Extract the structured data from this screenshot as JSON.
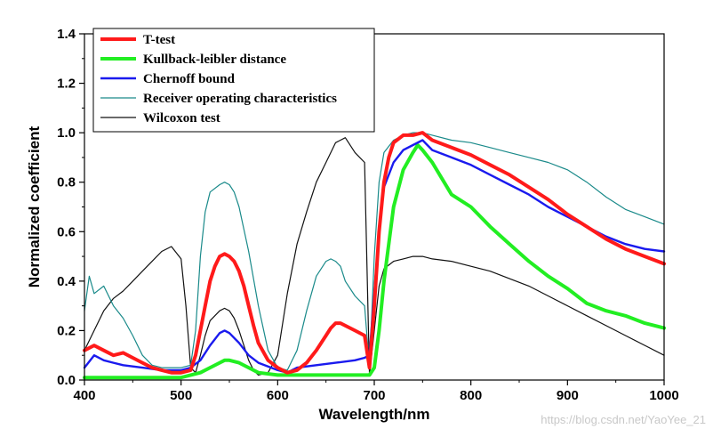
{
  "chart_data": {
    "type": "line",
    "title": "",
    "xlabel": "Wavelength/nm",
    "ylabel": "Normalized coefficient",
    "xlim": [
      400,
      1000
    ],
    "ylim": [
      0,
      1.4
    ],
    "xticks": [
      400,
      500,
      600,
      700,
      800,
      900,
      1000
    ],
    "yticks": [
      0.0,
      0.2,
      0.4,
      0.6,
      0.8,
      1.0,
      1.2,
      1.4
    ],
    "yticklabels": [
      "0.0",
      "0.2",
      "0.4",
      "0.6",
      "0.8",
      "1.0",
      "1.2",
      "1.4"
    ],
    "legend_position": "top-left",
    "series": [
      {
        "name": "T-test",
        "color": "#ff1a1a",
        "weight": "heavy",
        "x": [
          400,
          410,
          420,
          430,
          440,
          450,
          460,
          470,
          480,
          490,
          500,
          510,
          515,
          520,
          525,
          530,
          535,
          540,
          545,
          550,
          555,
          560,
          565,
          570,
          575,
          580,
          590,
          600,
          610,
          620,
          630,
          640,
          650,
          655,
          660,
          665,
          670,
          680,
          690,
          695,
          700,
          705,
          710,
          715,
          720,
          730,
          740,
          750,
          760,
          780,
          800,
          820,
          840,
          860,
          880,
          900,
          920,
          940,
          960,
          980,
          1000
        ],
        "y": [
          0.12,
          0.14,
          0.12,
          0.1,
          0.11,
          0.09,
          0.07,
          0.05,
          0.04,
          0.03,
          0.03,
          0.04,
          0.1,
          0.2,
          0.3,
          0.4,
          0.46,
          0.5,
          0.51,
          0.5,
          0.48,
          0.44,
          0.38,
          0.3,
          0.22,
          0.15,
          0.08,
          0.05,
          0.03,
          0.04,
          0.07,
          0.12,
          0.18,
          0.21,
          0.23,
          0.23,
          0.22,
          0.2,
          0.18,
          0.05,
          0.3,
          0.6,
          0.8,
          0.9,
          0.96,
          0.99,
          0.99,
          1.0,
          0.97,
          0.94,
          0.91,
          0.87,
          0.83,
          0.78,
          0.73,
          0.67,
          0.62,
          0.57,
          0.53,
          0.5,
          0.47
        ]
      },
      {
        "name": "Kullback-leibler distance",
        "color": "#22ee22",
        "weight": "heavy",
        "x": [
          400,
          440,
          480,
          500,
          510,
          520,
          530,
          540,
          545,
          550,
          560,
          570,
          580,
          600,
          620,
          640,
          660,
          680,
          690,
          695,
          700,
          705,
          710,
          720,
          730,
          740,
          745,
          750,
          760,
          780,
          800,
          820,
          840,
          860,
          880,
          900,
          920,
          940,
          960,
          980,
          1000
        ],
        "y": [
          0.01,
          0.01,
          0.01,
          0.01,
          0.02,
          0.03,
          0.05,
          0.07,
          0.08,
          0.08,
          0.07,
          0.05,
          0.03,
          0.02,
          0.02,
          0.02,
          0.02,
          0.02,
          0.02,
          0.02,
          0.05,
          0.2,
          0.4,
          0.7,
          0.85,
          0.92,
          0.95,
          0.93,
          0.88,
          0.75,
          0.7,
          0.62,
          0.55,
          0.48,
          0.42,
          0.37,
          0.31,
          0.28,
          0.26,
          0.23,
          0.21
        ]
      },
      {
        "name": "Chernoff bound",
        "color": "#1a1aee",
        "weight": "medium",
        "x": [
          400,
          410,
          420,
          430,
          440,
          460,
          480,
          500,
          510,
          520,
          530,
          540,
          545,
          550,
          560,
          570,
          580,
          600,
          610,
          620,
          640,
          660,
          680,
          690,
          695,
          700,
          705,
          710,
          720,
          730,
          740,
          750,
          760,
          780,
          800,
          820,
          840,
          860,
          880,
          900,
          920,
          940,
          960,
          980,
          1000
        ],
        "y": [
          0.05,
          0.1,
          0.08,
          0.07,
          0.06,
          0.05,
          0.04,
          0.04,
          0.05,
          0.08,
          0.14,
          0.19,
          0.2,
          0.19,
          0.15,
          0.1,
          0.07,
          0.04,
          0.03,
          0.05,
          0.06,
          0.07,
          0.08,
          0.09,
          0.1,
          0.35,
          0.6,
          0.78,
          0.88,
          0.93,
          0.95,
          0.97,
          0.93,
          0.9,
          0.87,
          0.83,
          0.79,
          0.75,
          0.7,
          0.66,
          0.62,
          0.58,
          0.55,
          0.53,
          0.52
        ]
      },
      {
        "name": "Receiver operating characteristics",
        "color": "#1a8a8a",
        "weight": "thin",
        "x": [
          400,
          405,
          410,
          420,
          430,
          440,
          450,
          460,
          470,
          480,
          490,
          500,
          510,
          515,
          520,
          525,
          530,
          540,
          545,
          550,
          555,
          560,
          570,
          580,
          590,
          600,
          610,
          620,
          630,
          640,
          650,
          655,
          660,
          665,
          670,
          680,
          690,
          695,
          700,
          705,
          710,
          720,
          730,
          740,
          750,
          760,
          780,
          800,
          820,
          840,
          860,
          880,
          900,
          920,
          940,
          960,
          980,
          1000
        ],
        "y": [
          0.28,
          0.42,
          0.35,
          0.38,
          0.3,
          0.25,
          0.18,
          0.1,
          0.06,
          0.05,
          0.05,
          0.05,
          0.06,
          0.2,
          0.5,
          0.68,
          0.76,
          0.79,
          0.8,
          0.79,
          0.76,
          0.7,
          0.52,
          0.3,
          0.12,
          0.05,
          0.04,
          0.12,
          0.28,
          0.42,
          0.48,
          0.49,
          0.48,
          0.46,
          0.4,
          0.34,
          0.3,
          0.05,
          0.5,
          0.8,
          0.92,
          0.97,
          0.99,
          1.0,
          1.0,
          0.99,
          0.97,
          0.96,
          0.94,
          0.92,
          0.9,
          0.88,
          0.85,
          0.8,
          0.74,
          0.69,
          0.66,
          0.63
        ]
      },
      {
        "name": "Wilcoxon test",
        "color": "#111111",
        "weight": "thin",
        "x": [
          400,
          410,
          420,
          430,
          440,
          450,
          460,
          470,
          480,
          490,
          500,
          505,
          510,
          515,
          520,
          525,
          530,
          540,
          545,
          550,
          555,
          560,
          565,
          570,
          575,
          580,
          590,
          600,
          610,
          620,
          630,
          640,
          650,
          660,
          670,
          680,
          690,
          695,
          700,
          705,
          710,
          720,
          730,
          740,
          750,
          760,
          780,
          800,
          820,
          840,
          860,
          880,
          900,
          920,
          940,
          960,
          980,
          1000
        ],
        "y": [
          0.12,
          0.2,
          0.28,
          0.33,
          0.36,
          0.4,
          0.44,
          0.48,
          0.52,
          0.54,
          0.49,
          0.3,
          0.05,
          0.03,
          0.1,
          0.18,
          0.24,
          0.28,
          0.29,
          0.28,
          0.25,
          0.2,
          0.14,
          0.08,
          0.04,
          0.02,
          0.03,
          0.1,
          0.35,
          0.55,
          0.68,
          0.8,
          0.88,
          0.96,
          0.98,
          0.92,
          0.88,
          0.02,
          0.2,
          0.38,
          0.45,
          0.48,
          0.49,
          0.5,
          0.5,
          0.49,
          0.48,
          0.46,
          0.44,
          0.41,
          0.38,
          0.34,
          0.3,
          0.26,
          0.22,
          0.18,
          0.14,
          0.1
        ]
      }
    ]
  },
  "watermark": "https://blog.csdn.net/YaoYee_21"
}
